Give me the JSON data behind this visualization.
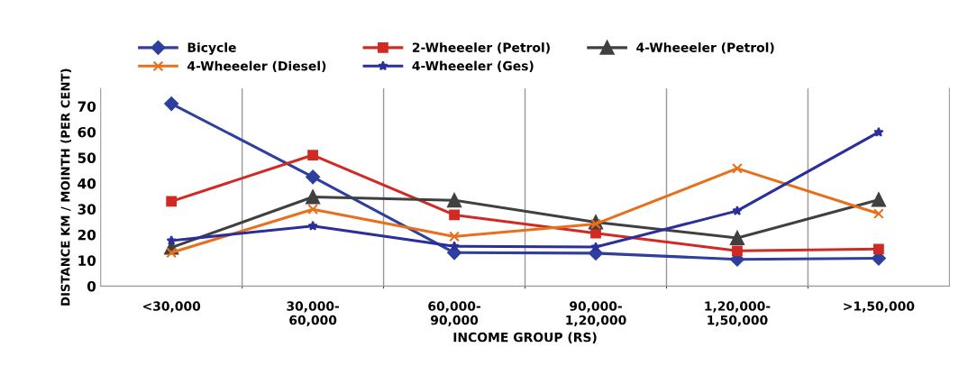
{
  "chart_data": {
    "type": "line",
    "xlabel": "INCOME GROUP (RS)",
    "ylabel": "DISTANCE KM / MOINTH (PER CENT)",
    "categories": [
      "<30,000",
      "30,000-\n60,000",
      "60,000-\n90,000",
      "90,000-\n1,20,000",
      "1,20,000-\n1,50,000",
      ">1,50,000"
    ],
    "series": [
      {
        "name": "Bicycle",
        "color": "#2e3f9e",
        "marker": "diamond",
        "values": [
          71,
          42.5,
          13,
          12.8,
          10.4,
          10.8
        ]
      },
      {
        "name": "2-Wheeeler (Petrol)",
        "color": "#d12a24",
        "marker": "square",
        "values": [
          33,
          51,
          27.7,
          20.6,
          13.7,
          14.4
        ]
      },
      {
        "name": "4-Wheeeler (Petrol)",
        "color": "#404040",
        "marker": "triangle",
        "values": [
          15,
          34.7,
          33.4,
          24.9,
          18.7,
          33.6
        ]
      },
      {
        "name": "4-Wheeeler (Diesel)",
        "color": "#e8701c",
        "marker": "cross",
        "values": [
          13,
          29.9,
          19.3,
          24.2,
          45.8,
          28.2
        ]
      },
      {
        "name": "4-Wheeeler (Ges)",
        "color": "#2b2f9a",
        "marker": "star",
        "values": [
          17.7,
          23.4,
          15.5,
          15.2,
          29.3,
          59.9
        ]
      }
    ],
    "ylim": [
      0,
      77
    ],
    "yticks": [
      0,
      10,
      20,
      30,
      40,
      50,
      60,
      70
    ],
    "grid": "x",
    "legend": "top"
  }
}
